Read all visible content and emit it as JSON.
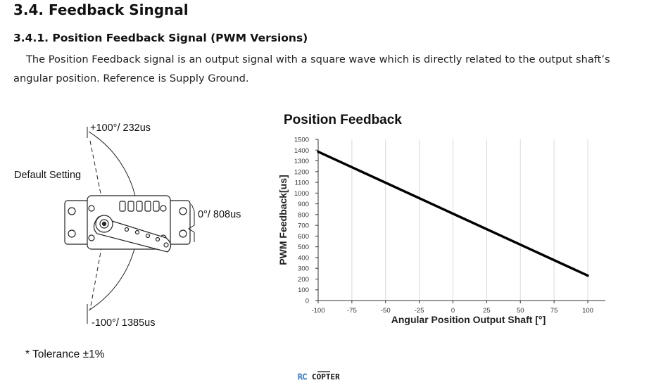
{
  "section_title": "3.4. Feedback Singnal",
  "subsection_title": "3.4.1. Position Feedback Signal (PWM Versions)",
  "paragraph": "The Position Feedback signal is an output signal with a square wave which is directly related to the output shaft’s angular position. Reference is Supply Ground.",
  "diagram": {
    "label_top": "+100°/ 232us",
    "label_default": "Default Setting",
    "label_center": "0°/ 808us",
    "label_bottom": "-100°/ 1385us"
  },
  "tolerance": "* Tolerance ±1%",
  "logo": {
    "text_rc": "RC",
    "text_copter": "COPTER",
    "accent": "#2a6fb5"
  },
  "chart_data": {
    "type": "line",
    "title": "Position Feedback",
    "xlabel": "Angular Position Output Shaft [°]",
    "ylabel": "PWM Feedback[us]",
    "xlim": [
      -100,
      100
    ],
    "ylim": [
      0,
      1500
    ],
    "xticks": [
      -100,
      -75,
      -50,
      -25,
      0,
      25,
      50,
      75,
      100
    ],
    "yticks": [
      0,
      100,
      200,
      300,
      400,
      500,
      600,
      700,
      800,
      900,
      1000,
      1100,
      1200,
      1300,
      1400,
      1500
    ],
    "grid": "vertical",
    "series": [
      {
        "x": [
          -100,
          100
        ],
        "y": [
          1385,
          232
        ],
        "color": "#000000"
      }
    ]
  }
}
